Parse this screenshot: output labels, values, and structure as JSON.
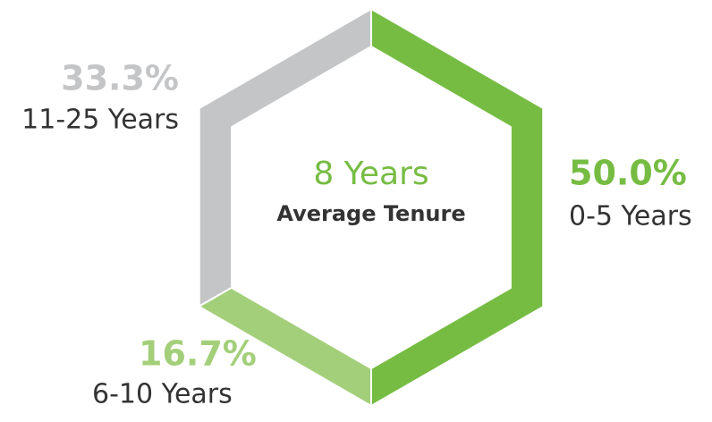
{
  "chart_data": {
    "type": "donut",
    "shape": "hexagon",
    "center_title": "8 Years",
    "center_subtitle": "Average Tenure",
    "categories": [
      "0-5 Years",
      "6-10 Years",
      "11-25 Years"
    ],
    "values": [
      50.0,
      16.7,
      33.3
    ],
    "value_labels": [
      "50.0%",
      "16.7%",
      "33.3%"
    ],
    "colors": [
      "#76bc43",
      "#a3cf7a",
      "#c4c5c7"
    ]
  }
}
